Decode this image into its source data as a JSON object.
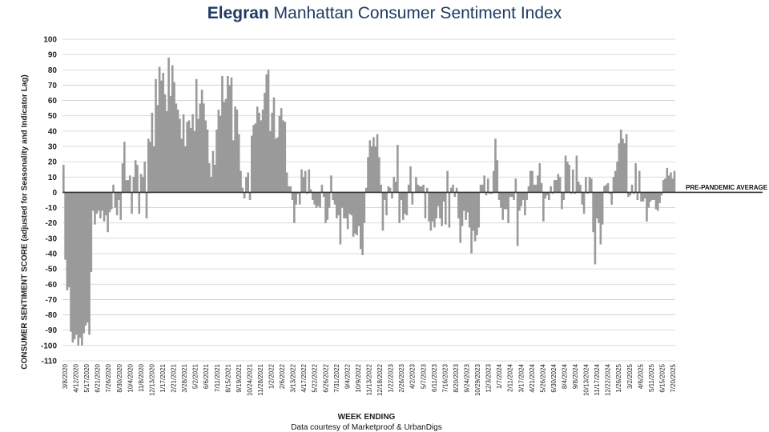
{
  "title": {
    "brand": "Elegran",
    "rest": "Manhattan Consumer Sentiment Index"
  },
  "credit": "Data courtesy of Marketproof & UrbanDigs",
  "chart_data": {
    "type": "bar",
    "title": "Elegran Manhattan Consumer Sentiment Index",
    "xlabel": "WEEK ENDING",
    "ylabel": "CONSUMER SENTIMENT SCORE (adjusted for Seasonality and Indicator Lag)",
    "ylim": [
      -110,
      100
    ],
    "yticks": [
      100,
      90,
      80,
      70,
      60,
      50,
      40,
      30,
      20,
      10,
      0,
      -10,
      -20,
      -30,
      -40,
      -50,
      -60,
      -70,
      -80,
      -90,
      -100,
      -110
    ],
    "grid": true,
    "reference_line": {
      "value": 0,
      "label": "PRE-PANDEMIC AVERAGE"
    },
    "x_tick_labels": [
      "3/8/2020",
      "4/12/2020",
      "5/17/2020",
      "6/21/2020",
      "7/26/2020",
      "8/30/2020",
      "10/4/2020",
      "11/8/2020",
      "12/13/2020",
      "1/17/2021",
      "2/21/2021",
      "3/28/2021",
      "5/2/2021",
      "6/6/2021",
      "7/11/2021",
      "8/15/2021",
      "9/19/2021",
      "10/24/2021",
      "11/28/2021",
      "1/2/2022",
      "2/6/2022",
      "3/13/2022",
      "4/17/2022",
      "5/22/2022",
      "6/26/2022",
      "7/31/2022",
      "9/4/2022",
      "10/9/2022",
      "11/13/2022",
      "12/18/2022",
      "1/22/2023",
      "2/26/2023",
      "4/2/2023",
      "5/7/2023",
      "6/11/2023",
      "7/16/2023",
      "8/20/2023",
      "9/24/2023",
      "10/29/2023",
      "12/3/2023",
      "1/7/2024",
      "2/11/2024",
      "3/17/2024",
      "4/21/2024",
      "5/26/2024",
      "6/30/2024",
      "8/4/2024",
      "9/8/2024",
      "10/13/2024",
      "11/17/2024",
      "12/22/2024",
      "1/26/2025",
      "3/2/2025",
      "4/6/2025",
      "5/11/2025",
      "6/15/2025",
      "7/20/2025"
    ],
    "values": [
      18,
      -44,
      -64,
      -62,
      -91,
      -98,
      -96,
      -93,
      -100,
      -95,
      -100,
      -92,
      -87,
      -85,
      -93,
      -52,
      -12,
      -21,
      -14,
      -12,
      -17,
      -12,
      -19,
      -15,
      -26,
      -13,
      -11,
      5,
      -10,
      -15,
      -5,
      -18,
      19,
      33,
      8,
      8,
      11,
      -14,
      10,
      21,
      18,
      -14,
      12,
      10,
      20,
      -17,
      35,
      33,
      52,
      30,
      74,
      57,
      82,
      73,
      78,
      64,
      53,
      88,
      63,
      83,
      72,
      58,
      54,
      48,
      35,
      51,
      30,
      46,
      47,
      42,
      51,
      40,
      74,
      48,
      58,
      67,
      58,
      47,
      41,
      19,
      10,
      27,
      18,
      41,
      54,
      50,
      76,
      59,
      61,
      76,
      70,
      75,
      34,
      56,
      54,
      38,
      14,
      3,
      -4,
      10,
      13,
      -5,
      37,
      44,
      45,
      56,
      52,
      47,
      54,
      65,
      77,
      80,
      40,
      52,
      62,
      35,
      36,
      50,
      55,
      47,
      46,
      13,
      4,
      4,
      -5,
      -20,
      -8,
      -1,
      -8,
      15,
      10,
      14,
      -1,
      15,
      2,
      -5,
      -8,
      -10,
      -9,
      -10,
      5,
      -3,
      -20,
      -18,
      -10,
      11,
      -5,
      -8,
      -17,
      -15,
      -34,
      -10,
      -17,
      -17,
      -24,
      -14,
      -15,
      -29,
      -27,
      -28,
      -22,
      -37,
      -41,
      -20,
      3,
      23,
      34,
      30,
      36,
      30,
      38,
      23,
      5,
      -25,
      -5,
      -15,
      4,
      3,
      -4,
      10,
      7,
      31,
      -20,
      -5,
      -18,
      -14,
      -15,
      5,
      17,
      -8,
      0,
      10,
      5,
      4,
      4,
      5,
      -17,
      3,
      -19,
      -25,
      -19,
      -23,
      -17,
      -9,
      -17,
      -22,
      -6,
      -21,
      14,
      -23,
      3,
      5,
      -3,
      3,
      -17,
      -33,
      -22,
      -12,
      -18,
      -13,
      -23,
      -40,
      -25,
      -32,
      -28,
      -23,
      5,
      5,
      11,
      -2,
      9,
      -1,
      -1,
      14,
      35,
      21,
      -5,
      -10,
      -18,
      -11,
      -11,
      -20,
      -3,
      -3,
      -5,
      9,
      -35,
      -12,
      -9,
      -5,
      -15,
      -5,
      4,
      14,
      14,
      5,
      5,
      11,
      19,
      6,
      -19,
      -4,
      -2,
      -5,
      4,
      -1,
      8,
      8,
      12,
      10,
      -11,
      -5,
      24,
      20,
      18,
      -1,
      15,
      -1,
      24,
      7,
      5,
      -8,
      -14,
      10,
      -1,
      10,
      9,
      -26,
      -47,
      -17,
      -20,
      -34,
      -21,
      4,
      5,
      6,
      -1,
      -8,
      10,
      14,
      20,
      32,
      41,
      35,
      32,
      38,
      -3,
      -2,
      5,
      -1,
      19,
      -5,
      14,
      -6,
      -6,
      -4,
      -19,
      -10,
      -6,
      -5,
      -5,
      -11,
      -12,
      -7,
      -2,
      8,
      9,
      16,
      11,
      13,
      9,
      14
    ]
  }
}
